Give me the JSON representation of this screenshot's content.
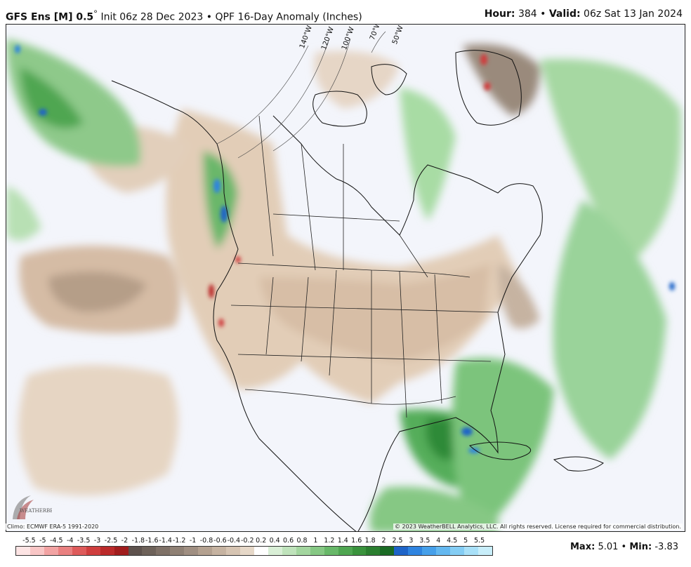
{
  "header": {
    "model": "GFS Ens [M] 0.5",
    "degree_symbol": "°",
    "init": "Init 06z 28 Dec 2023",
    "separator": "•",
    "product": "QPF 16-Day Anomaly (Inches)",
    "hour_label": "Hour:",
    "hour_value": "384",
    "valid_label": "Valid:",
    "valid_value": "06z Sat 13 Jan 2024"
  },
  "map": {
    "longitude_labels": [
      "140°W",
      "120°W",
      "100°W",
      "70°W",
      "50°W"
    ]
  },
  "footer": {
    "climo": "Climo: ECMWF ERA-5 1991-2020",
    "copyright": "© 2023 WeatherBELL Analytics, LLC. All rights reserved. License required for commercial distribution.",
    "logo_text": "WEATHERBELL"
  },
  "legend": {
    "labels": [
      "-5.5",
      "-5",
      "-4.5",
      "-4",
      "-3.5",
      "-3",
      "-2.5",
      "-2",
      "-1.8",
      "-1.6",
      "-1.4",
      "-1.2",
      "-1",
      "-0.8",
      "-0.6",
      "-0.4",
      "-0.2",
      "0.2",
      "0.4",
      "0.6",
      "0.8",
      "1",
      "1.2",
      "1.4",
      "1.6",
      "1.8",
      "2",
      "2.5",
      "3",
      "3.5",
      "4",
      "4.5",
      "5",
      "5.5"
    ],
    "colors": [
      "#fde4e4",
      "#f9c6c6",
      "#f2a3a3",
      "#e98080",
      "#de5b5b",
      "#cf3e3e",
      "#bb2a2a",
      "#a11d1d",
      "#5e524d",
      "#6e625a",
      "#7f7167",
      "#8f8074",
      "#a08f82",
      "#b4a190",
      "#c6b3a1",
      "#d6c4b2",
      "#e6d8c8",
      "#ffffff",
      "#d9efd6",
      "#bfe3bb",
      "#a3d69f",
      "#86c884",
      "#68b869",
      "#4fa651",
      "#3a933d",
      "#2b7f30",
      "#1a6b24",
      "#1e64c8",
      "#2f84e0",
      "#46a0ea",
      "#64b8f0",
      "#84cdf4",
      "#a8e0f8",
      "#c8eefa"
    ]
  },
  "stats": {
    "max_label": "Max",
    "max_value": "5.01",
    "min_label": "Min",
    "min_value": "-3.83"
  }
}
